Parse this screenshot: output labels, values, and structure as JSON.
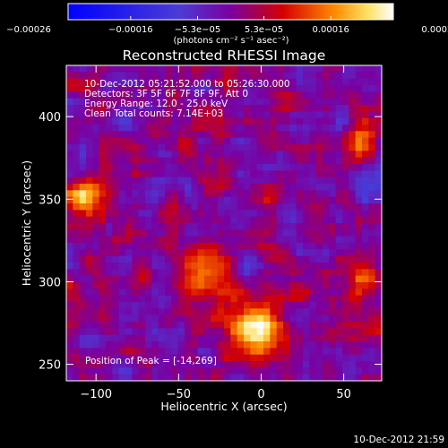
{
  "chart_data": {
    "type": "heatmap",
    "title": "Reconstructed RHESSI Image",
    "xlabel": "Heliocentric X (arcsec)",
    "ylabel": "Heliocentric Y (arcsec)",
    "xlim": [
      -118,
      73
    ],
    "ylim": [
      240,
      431
    ],
    "x_ticks": [
      {
        "value": -100,
        "label": "−100"
      },
      {
        "value": -50,
        "label": "−50"
      },
      {
        "value": 0,
        "label": "0"
      },
      {
        "value": 50,
        "label": "50"
      }
    ],
    "y_ticks": [
      {
        "value": 250,
        "label": "250"
      },
      {
        "value": 300,
        "label": "300"
      },
      {
        "value": 350,
        "label": "350"
      },
      {
        "value": 400,
        "label": "400"
      }
    ],
    "colorbar": {
      "range": [
        -0.00026,
        0.00026
      ],
      "ticks": [
        {
          "value": -0.00026,
          "label": "−0.00026"
        },
        {
          "value": -0.00016,
          "label": "−0.00016"
        },
        {
          "value": -5.3e-05,
          "label": "−5.3e−05"
        },
        {
          "value": 5.3e-05,
          "label": "5.3e−05"
        },
        {
          "value": 0.00016,
          "label": "0.00016"
        },
        {
          "value": 0.00026,
          "label": "0.00026"
        }
      ],
      "unit_label": "(photons cm⁻² s⁻¹ asec⁻²)"
    },
    "annotations": [
      "10-Dec-2012 05:21:52.000 to 05:26:30.000",
      "Detectors: 3F 5F 6F 7F 8F 9F, Att 0",
      "Energy Range: 12.0 - 25.0 keV",
      "Clean     Total counts: 7.14E+03"
    ],
    "peak_label": "Position of Peak = [-14,269]",
    "peak": {
      "x": -14,
      "y": 269
    },
    "sources": [
      {
        "x": -5,
        "y": 270,
        "intensity": 0.00025,
        "radius": 12
      },
      {
        "x": -35,
        "y": 306,
        "intensity": 0.00019,
        "radius": 10
      },
      {
        "x": -107,
        "y": 352,
        "intensity": 0.00018,
        "radius": 8
      },
      {
        "x": 60,
        "y": 385,
        "intensity": 0.00014,
        "radius": 8
      },
      {
        "x": 62,
        "y": 305,
        "intensity": 0.00013,
        "radius": 7
      },
      {
        "x": -45,
        "y": 380,
        "intensity": 6e-05,
        "radius": 5
      },
      {
        "x": 25,
        "y": 290,
        "intensity": 7e-05,
        "radius": 5
      },
      {
        "x": 45,
        "y": 270,
        "intensity": 6e-05,
        "radius": 6
      }
    ]
  },
  "footer_timestamp": "10-Dec-2012 21:59"
}
